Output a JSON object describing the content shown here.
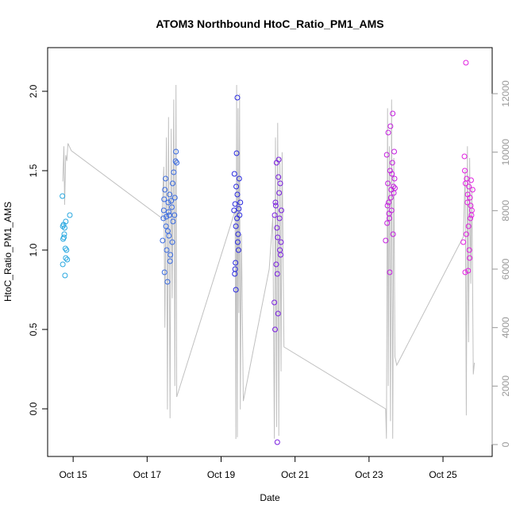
{
  "chart_data": {
    "type": "scatter",
    "title": "ATOM3 Northbound HtoC_Ratio_PM1_AMS",
    "xlabel": "Date",
    "ylabel": "HtoC_Ratio_PM1_AMS",
    "xlim": [
      14.31,
      26.33
    ],
    "xticks": [
      {
        "value": 15,
        "label": "Oct 15"
      },
      {
        "value": 17,
        "label": "Oct 17"
      },
      {
        "value": 19,
        "label": "Oct 19"
      },
      {
        "value": 21,
        "label": "Oct 21"
      },
      {
        "value": 23,
        "label": "Oct 23"
      },
      {
        "value": 25,
        "label": "Oct 25"
      }
    ],
    "ylim": [
      -0.3,
      2.275
    ],
    "yticks": [
      {
        "value": 0,
        "label": "0.0"
      },
      0.5,
      {
        "value": 1,
        "label": "1.0"
      },
      1.5,
      {
        "value": 2,
        "label": "2.0"
      }
    ],
    "y2lim": [
      -407,
      13575
    ],
    "y2ticks": [
      0,
      2000,
      4000,
      6000,
      8000,
      10000,
      12000
    ],
    "series": [
      {
        "color": "#29a8e0",
        "x": [
          14.71,
          14.72,
          14.74,
          14.75,
          14.76,
          14.73,
          14.72,
          14.78,
          14.8,
          14.82,
          14.91,
          14.8,
          14.77,
          14.84,
          14.79
        ],
        "values": [
          1.34,
          1.15,
          1.16,
          1.08,
          1.1,
          1.07,
          0.91,
          0.84,
          0.95,
          1.0,
          1.22,
          1.18,
          1.14,
          0.94,
          1.01
        ]
      },
      {
        "color": "#3a6be0",
        "x": [
          17.42,
          17.45,
          17.47,
          17.5,
          17.52,
          17.55,
          17.57,
          17.6,
          17.62,
          17.65,
          17.68,
          17.7,
          17.72,
          17.75,
          17.78,
          17.8,
          17.48,
          17.53,
          17.58,
          17.63,
          17.67,
          17.44,
          17.51,
          17.59,
          17.74,
          17.77,
          17.46,
          17.56,
          17.61,
          17.69
        ],
        "values": [
          1.06,
          1.25,
          0.86,
          1.45,
          1.21,
          0.8,
          1.3,
          1.22,
          0.93,
          1.31,
          1.05,
          1.18,
          1.49,
          1.33,
          1.62,
          1.55,
          1.38,
          1.0,
          1.24,
          0.97,
          1.27,
          1.2,
          1.15,
          1.09,
          1.22,
          1.56,
          1.32,
          1.12,
          1.35,
          1.42
        ]
      },
      {
        "color": "#2a2ae0",
        "x": [
          19.36,
          19.38,
          19.4,
          19.42,
          19.44,
          19.46,
          19.48,
          19.5,
          19.37,
          19.41,
          19.45,
          19.49,
          19.39,
          19.43,
          19.47,
          19.35,
          19.52,
          19.44,
          19.4,
          19.38
        ],
        "values": [
          1.48,
          1.29,
          0.75,
          1.61,
          1.96,
          1.1,
          1.26,
          1.22,
          0.85,
          1.4,
          1.05,
          1.45,
          0.92,
          1.2,
          1.0,
          1.25,
          1.3,
          1.35,
          1.15,
          0.88
        ]
      },
      {
        "color": "#7a1fe0",
        "x": [
          20.44,
          20.46,
          20.48,
          20.5,
          20.52,
          20.54,
          20.56,
          20.58,
          20.6,
          20.62,
          20.45,
          20.49,
          20.53,
          20.57,
          20.61,
          20.47,
          20.51,
          20.55,
          20.59,
          20.63,
          20.52
        ],
        "values": [
          0.67,
          0.5,
          1.28,
          1.55,
          -0.21,
          0.6,
          1.57,
          1.2,
          1.42,
          1.05,
          1.22,
          0.91,
          1.08,
          1.36,
          0.97,
          1.3,
          1.14,
          1.46,
          1.0,
          1.25,
          0.85
        ]
      },
      {
        "color": "#c51fe0",
        "x": [
          23.45,
          23.48,
          23.5,
          23.52,
          23.54,
          23.56,
          23.58,
          23.6,
          23.62,
          23.64,
          23.66,
          23.68,
          23.7,
          23.49,
          23.53,
          23.57,
          23.61,
          23.65,
          23.69,
          23.51,
          23.55,
          23.59,
          23.63,
          23.67
        ],
        "values": [
          1.06,
          1.6,
          1.28,
          1.74,
          1.23,
          0.86,
          1.78,
          1.38,
          1.48,
          1.86,
          1.4,
          1.62,
          1.39,
          1.17,
          1.3,
          1.5,
          1.25,
          1.1,
          1.45,
          1.42,
          1.2,
          1.33,
          1.55,
          1.36
        ]
      },
      {
        "color": "#e01fe0",
        "x": [
          25.55,
          25.58,
          25.6,
          25.62,
          25.64,
          25.66,
          25.68,
          25.7,
          25.72,
          25.74,
          25.76,
          25.78,
          25.8,
          25.59,
          25.63,
          25.67,
          25.71,
          25.75,
          25.61,
          25.69,
          25.73,
          25.77
        ],
        "values": [
          1.05,
          1.59,
          0.86,
          2.18,
          1.45,
          1.3,
          0.87,
          1.4,
          0.95,
          1.2,
          1.44,
          1.25,
          1.38,
          1.5,
          1.1,
          1.35,
          1.0,
          1.28,
          1.42,
          1.15,
          1.33,
          1.22
        ]
      },
      {
        "color": "#c0c0c0",
        "axis": "y2",
        "x": [
          14.72,
          14.75,
          14.77,
          14.8,
          14.83,
          14.86,
          14.95,
          17.4,
          17.45,
          17.48,
          17.52,
          17.55,
          17.58,
          17.62,
          17.65,
          17.68,
          17.72,
          17.75,
          17.78,
          17.8,
          19.38,
          19.4,
          19.42,
          19.44,
          19.46,
          19.48,
          19.5,
          19.52,
          19.55,
          19.6,
          20.3,
          20.4,
          20.44,
          20.47,
          20.5,
          20.53,
          20.56,
          20.59,
          20.62,
          20.65,
          20.7,
          23.45,
          23.47,
          23.5,
          23.52,
          23.55,
          23.58,
          23.61,
          23.64,
          23.67,
          23.7,
          23.75,
          25.55,
          25.6,
          25.63,
          25.66,
          25.69,
          25.72,
          25.75,
          25.78,
          25.82,
          25.85
        ],
        "values": [
          9000,
          10200,
          8200,
          9900,
          9700,
          10300,
          10050,
          7740,
          9500,
          4000,
          10500,
          1200,
          11200,
          900,
          10800,
          5000,
          11800,
          2000,
          12300,
          1630,
          8000,
          190,
          12300,
          250,
          11500,
          4500,
          12000,
          1200,
          7200,
          1490,
          6000,
          7800,
          200,
          10500,
          600,
          11000,
          300,
          9800,
          2500,
          10000,
          3340,
          1220,
          200,
          11500,
          2000,
          10200,
          800,
          11800,
          200,
          9800,
          3000,
          2715,
          7110,
          9400,
          1000,
          10200,
          3500,
          9800,
          5500,
          8800,
          2400,
          2800
        ]
      }
    ]
  }
}
